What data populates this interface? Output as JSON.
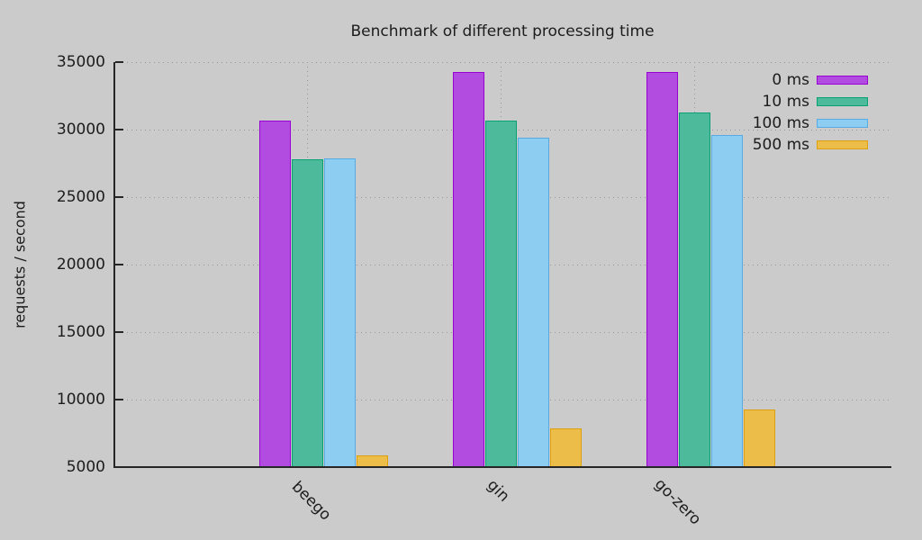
{
  "chart_data": {
    "type": "bar",
    "title": "Benchmark of different processing time",
    "xlabel": "",
    "ylabel": "requests / second",
    "categories": [
      "beego",
      "gin",
      "go-zero"
    ],
    "series": [
      {
        "name": "0 ms",
        "fill": "#b24be0",
        "border": "#9903d1",
        "values": [
          30700,
          34300,
          34250
        ]
      },
      {
        "name": "10 ms",
        "fill": "#4dbb9b",
        "border": "#09a174",
        "values": [
          27800,
          30650,
          31250
        ]
      },
      {
        "name": "100 ms",
        "fill": "#8dcdf2",
        "border": "#57abe2",
        "values": [
          27900,
          29400,
          29600
        ]
      },
      {
        "name": "500 ms",
        "fill": "#edbd4a",
        "border": "#dda00e",
        "values": [
          5850,
          7900,
          9250
        ]
      }
    ],
    "ylim": [
      5000,
      35000
    ],
    "ytick_step": 5000,
    "ytick_labels": [
      "5000",
      "10000",
      "15000",
      "20000",
      "25000",
      "30000",
      "35000"
    ],
    "grid": true,
    "legend_position": "top-right",
    "colors": {
      "background": "#cbcbcb",
      "axis": "#262626",
      "grid": "#979797",
      "text": "#1c1c1c"
    }
  }
}
